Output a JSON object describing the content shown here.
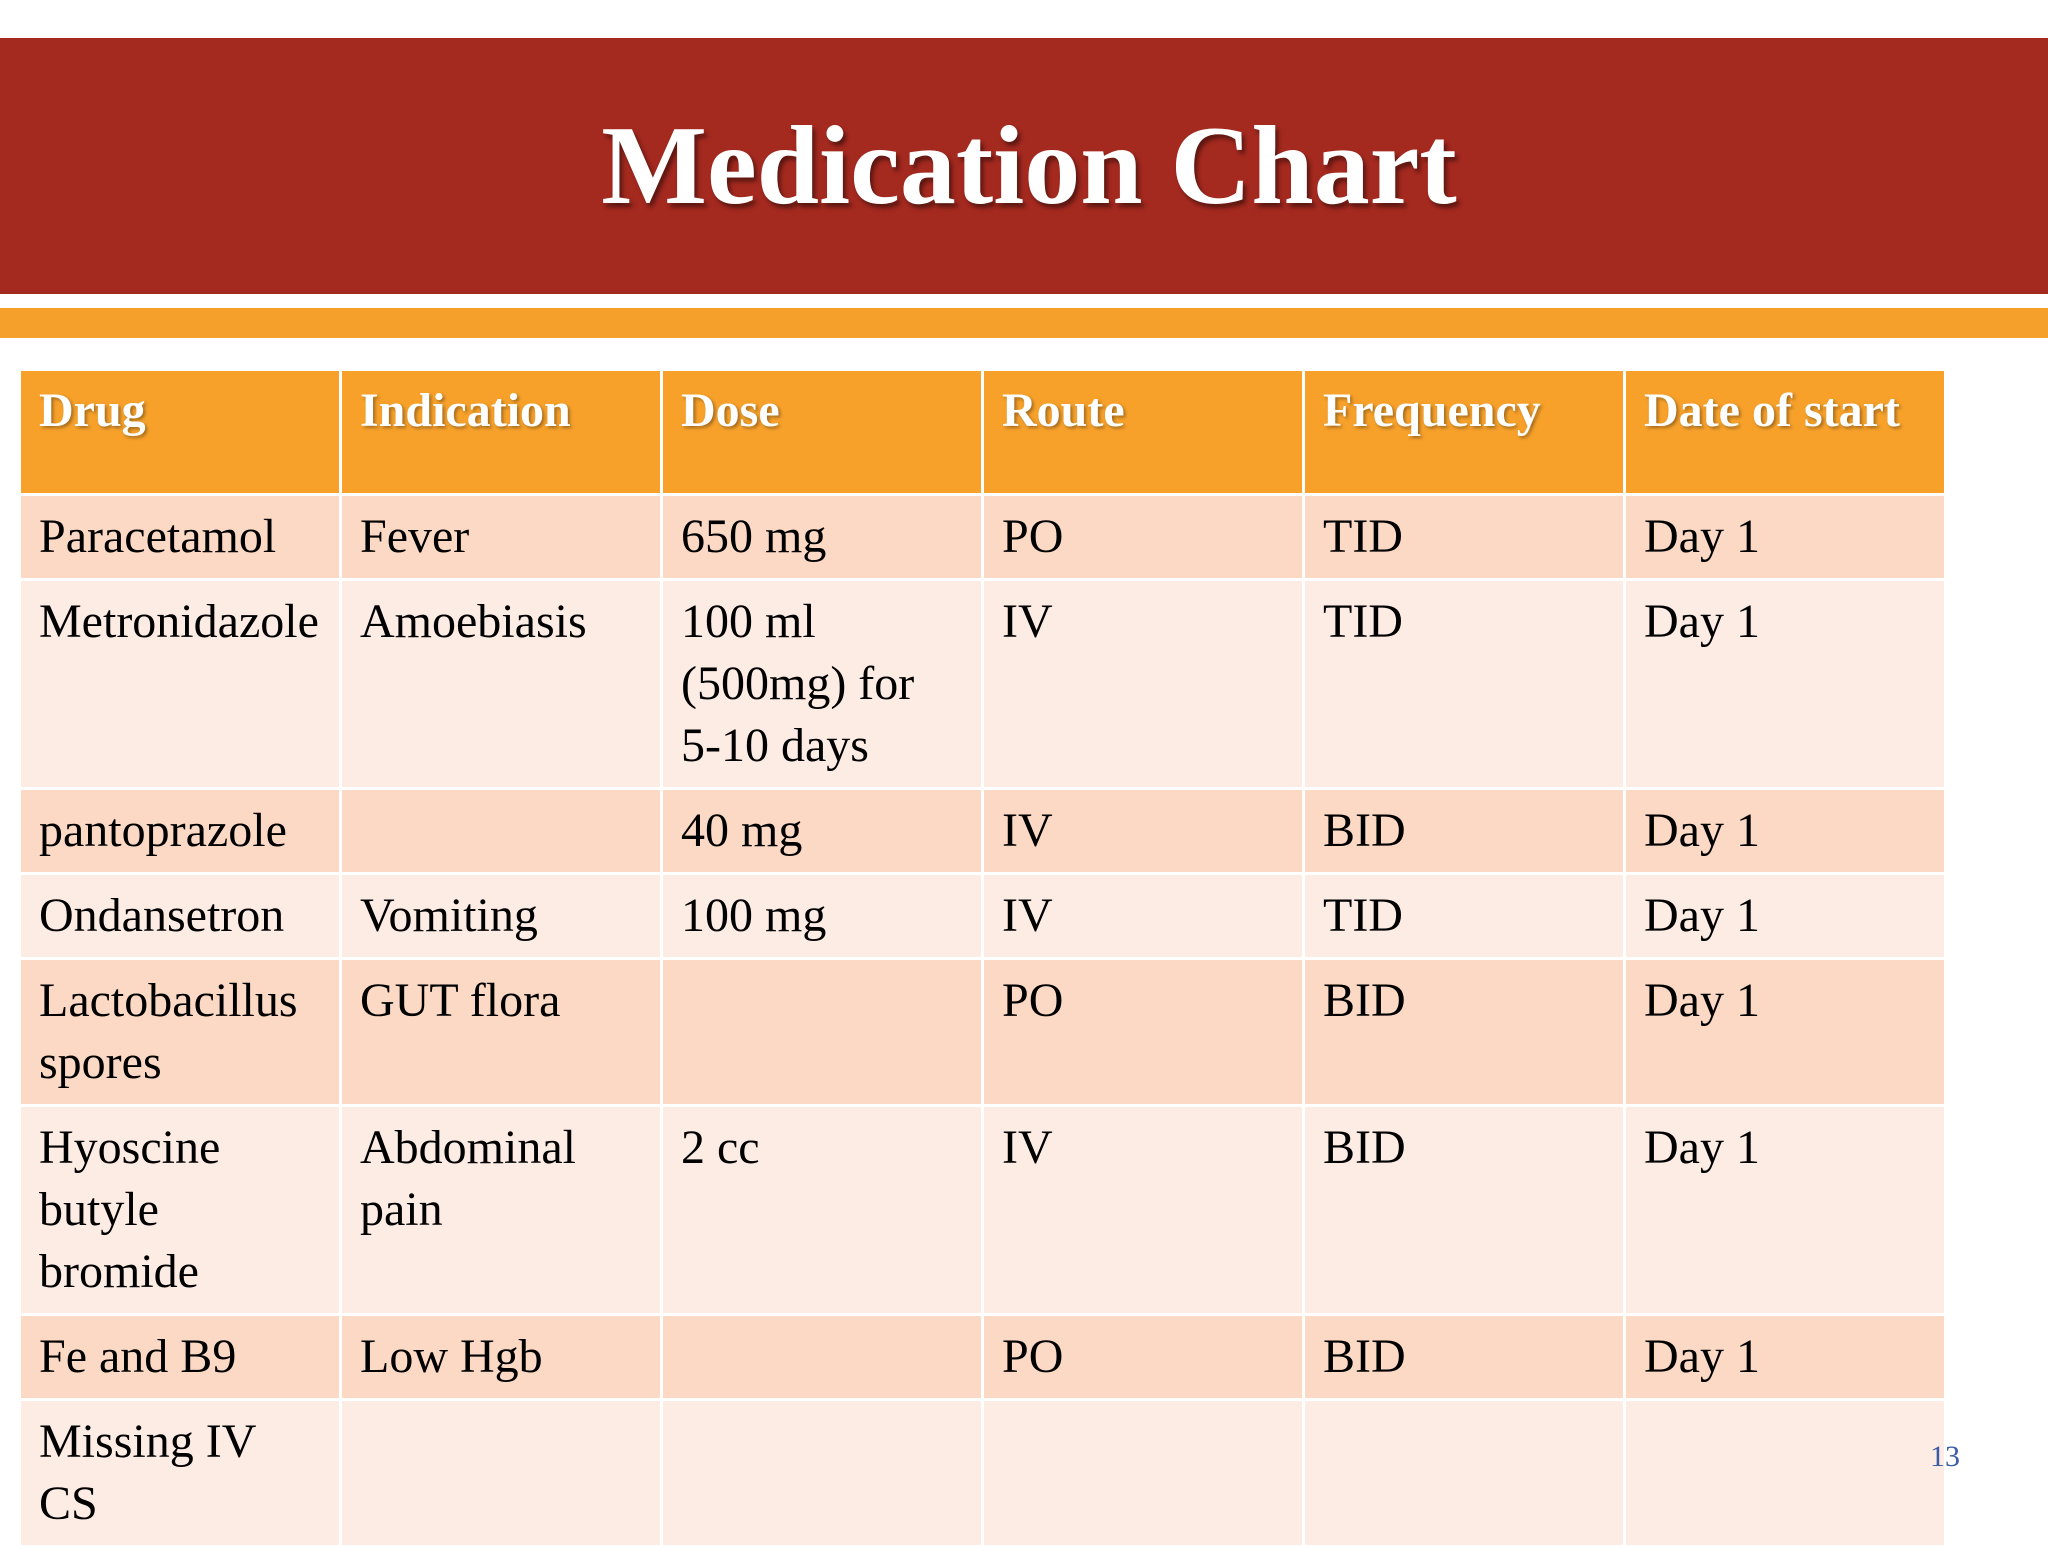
{
  "slide": {
    "title": "Medication Chart",
    "slide_number": "13",
    "colors": {
      "title_band": "#a4291f",
      "accent_stripe": "#f5a02a",
      "header_row": "#f7a12b",
      "row_odd": "#fcd9c4",
      "row_even": "#fdece4",
      "slide_number": "#3b5ba5"
    }
  },
  "table": {
    "headers": [
      "Drug",
      "Indication",
      "Dose",
      "Route",
      "Frequency",
      "Date of start"
    ],
    "rows": [
      [
        "Paracetamol",
        "Fever",
        "650 mg",
        "PO",
        "TID",
        "Day 1"
      ],
      [
        "Metronidazole",
        "Amoebiasis",
        "100 ml (500mg) for 5-10 days",
        "IV",
        "TID",
        "Day 1"
      ],
      [
        "pantoprazole",
        "",
        "40 mg",
        "IV",
        "BID",
        "Day 1"
      ],
      [
        "Ondansetron",
        "Vomiting",
        "100 mg",
        "IV",
        "TID",
        "Day 1"
      ],
      [
        "Lactobacillus spores",
        "GUT flora",
        "",
        "PO",
        "BID",
        "Day 1"
      ],
      [
        "Hyoscine butyle bromide",
        "Abdominal pain",
        "2 cc",
        "IV",
        "BID",
        "Day 1"
      ],
      [
        "Fe and B9",
        "Low Hgb",
        "",
        "PO",
        "BID",
        "Day 1"
      ],
      [
        "Missing IV CS",
        "",
        "",
        "",
        "",
        ""
      ]
    ]
  }
}
